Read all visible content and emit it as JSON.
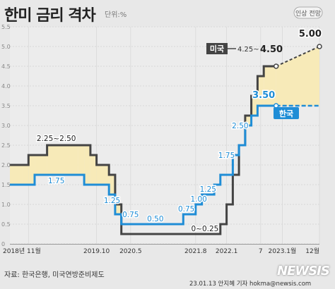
{
  "header": {
    "title": "한미 금리 격차",
    "unit": "단위:%"
  },
  "footer": {
    "source": "자료: 한국은행, 미국연방준비제도",
    "credit": "23.01.13 안지혜 기자  hokma@newsis.com",
    "logo": "NEWSIS"
  },
  "colors": {
    "us": "#444444",
    "korea": "#1f8dd6",
    "gap_fill": "#f7eab8",
    "background": "#e8e8e8"
  },
  "chart_data": {
    "type": "line",
    "step": true,
    "ylim": [
      0,
      5.5
    ],
    "xlim": [
      0,
      50
    ],
    "grid": true,
    "y_ticks": [
      "5.5",
      "5.0",
      "4.5",
      "4.0",
      "3.5",
      "3.0",
      "2.5",
      "2.0",
      "1.5",
      "1.0",
      "0.5",
      "0"
    ],
    "x_ticks": [
      {
        "x": 3,
        "label": "2018년 11월"
      },
      {
        "x": 14,
        "label": "2019.10"
      },
      {
        "x": 19.5,
        "label": "2020.5"
      },
      {
        "x": 30,
        "label": "2021.8"
      },
      {
        "x": 35,
        "label": "2022.1"
      },
      {
        "x": 40.5,
        "label": "7"
      },
      {
        "x": 44,
        "label": "2023.1월"
      },
      {
        "x": 50,
        "label": "12월"
      }
    ],
    "series": [
      {
        "name": "미국",
        "points": [
          [
            0,
            2.0
          ],
          [
            2,
            2.0
          ],
          [
            3,
            2.25
          ],
          [
            6,
            2.5
          ],
          [
            12,
            2.5
          ],
          [
            13,
            2.25
          ],
          [
            14,
            2.0
          ],
          [
            16,
            1.75
          ],
          [
            17,
            1.0
          ],
          [
            18,
            0.25
          ],
          [
            33,
            0.25
          ],
          [
            34,
            0.5
          ],
          [
            35,
            1.0
          ],
          [
            36,
            1.75
          ],
          [
            37,
            2.5
          ],
          [
            38,
            3.25
          ],
          [
            39,
            3.75
          ],
          [
            40,
            4.25
          ],
          [
            41,
            4.5
          ],
          [
            43,
            4.5
          ]
        ],
        "projection": [
          [
            43,
            4.5
          ],
          [
            50,
            5.0
          ]
        ]
      },
      {
        "name": "한국",
        "points": [
          [
            0,
            1.5
          ],
          [
            3,
            1.5
          ],
          [
            4,
            1.75
          ],
          [
            11,
            1.75
          ],
          [
            12,
            1.5
          ],
          [
            16,
            1.25
          ],
          [
            17,
            0.75
          ],
          [
            18,
            0.5
          ],
          [
            27,
            0.5
          ],
          [
            28,
            0.75
          ],
          [
            30,
            1.0
          ],
          [
            31,
            1.25
          ],
          [
            32,
            1.25
          ],
          [
            33,
            1.5
          ],
          [
            34,
            1.75
          ],
          [
            36,
            2.25
          ],
          [
            37,
            2.5
          ],
          [
            38,
            3.0
          ],
          [
            39,
            3.25
          ],
          [
            40,
            3.5
          ],
          [
            43,
            3.5
          ]
        ],
        "projection": [
          [
            43,
            3.5
          ],
          [
            50,
            3.5
          ]
        ]
      }
    ],
    "annotations": [
      {
        "text": "2.25~2.50",
        "x": 7.5,
        "y": 2.5,
        "series": "미국",
        "dy": -6
      },
      {
        "text": "1.75",
        "x": 7.5,
        "y": 1.75,
        "series": "한국",
        "dy": 12
      },
      {
        "text": "1.25",
        "x": 16.5,
        "y": 1.25,
        "series": "한국",
        "dy": 12
      },
      {
        "text": "0.75",
        "x": 19.5,
        "y": 0.75,
        "series": "한국",
        "dy": 4
      },
      {
        "text": "0.50",
        "x": 23.5,
        "y": 0.5,
        "series": "한국",
        "dy": -4
      },
      {
        "text": "0.75",
        "x": 28.5,
        "y": 0.75,
        "series": "한국",
        "dy": -4
      },
      {
        "text": "1.00",
        "x": 30.5,
        "y": 1.0,
        "series": "한국",
        "dy": -4
      },
      {
        "text": "1.25",
        "x": 32,
        "y": 1.25,
        "series": "한국",
        "dy": -4
      },
      {
        "text": "0~0.25",
        "x": 31.5,
        "y": 0.25,
        "series": "미국",
        "dy": -4
      },
      {
        "text": "1.75",
        "x": 35,
        "y": 2.25,
        "series": "한국",
        "dy": 4
      },
      {
        "text": "2.50",
        "x": 37.2,
        "y": 3.0,
        "series": "한국",
        "dy": 4
      },
      {
        "text": "3.50",
        "x": 41,
        "y": 3.7,
        "series": "한국",
        "dy": 0
      },
      {
        "text": "5.00",
        "x": 48.5,
        "y": 5.25,
        "series": "미국",
        "dy": 0
      }
    ],
    "legend": [
      {
        "series": "미국",
        "label": "미국",
        "range_text": "4.25~",
        "value_text": "4.50"
      },
      {
        "series": "한국",
        "label": "한국"
      }
    ],
    "projection_label": "인상 전망"
  }
}
